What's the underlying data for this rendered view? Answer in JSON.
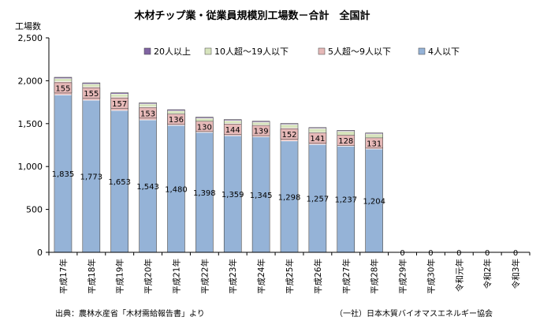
{
  "chart_data": {
    "type": "bar",
    "stacked": true,
    "title": "木材チップ業・従業員規模別工場数－合計　全国計",
    "ylabel": "工場数",
    "ylim": [
      0,
      2500
    ],
    "yticks": [
      "0",
      "500",
      "1,000",
      "1,500",
      "2,000",
      "2,500"
    ],
    "grid": false,
    "legend_position": "top",
    "categories": [
      "平成17年",
      "平成18年",
      "平成19年",
      "平成20年",
      "平成21年",
      "平成22年",
      "平成23年",
      "平成24年",
      "平成25年",
      "平成26年",
      "平成27年",
      "平成28年",
      "平成29年",
      "平成30年",
      "令和元年",
      "令和2年",
      "令和3年"
    ],
    "series": [
      {
        "name": "4人以下",
        "color": "#95b3d7",
        "values": [
          1835,
          1773,
          1653,
          1543,
          1480,
          1398,
          1359,
          1345,
          1298,
          1257,
          1237,
          1204,
          0,
          0,
          0,
          0,
          0
        ],
        "labels": [
          "1,835",
          "1,773",
          "1,653",
          "1,543",
          "1,480",
          "1,398",
          "1,359",
          "1,345",
          "1,298",
          "1,257",
          "1,237",
          "1,204",
          "0",
          "0",
          "0",
          "0",
          "0"
        ]
      },
      {
        "name": "5人超～9人以下",
        "color": "#e6b9b8",
        "values": [
          155,
          155,
          157,
          153,
          136,
          130,
          144,
          139,
          152,
          141,
          128,
          131,
          0,
          0,
          0,
          0,
          0
        ],
        "labels": [
          "155",
          "155",
          "157",
          "153",
          "136",
          "130",
          "144",
          "139",
          "152",
          "141",
          "128",
          "131",
          "",
          "",
          "",
          "",
          ""
        ]
      },
      {
        "name": "10人超～19人以下",
        "color": "#d7e4bd",
        "values": [
          35,
          33,
          35,
          33,
          33,
          34,
          32,
          32,
          40,
          45,
          45,
          45,
          0,
          0,
          0,
          0,
          0
        ]
      },
      {
        "name": "20人以上",
        "color": "#8064a2",
        "values": [
          15,
          14,
          14,
          13,
          13,
          13,
          12,
          12,
          12,
          11,
          11,
          11,
          0,
          0,
          0,
          0,
          0
        ]
      }
    ],
    "source_left": "出典：農林水産省「木材需給報告書」より",
    "source_right": "（一社）日本木質バイオマスエネルギー協会"
  }
}
